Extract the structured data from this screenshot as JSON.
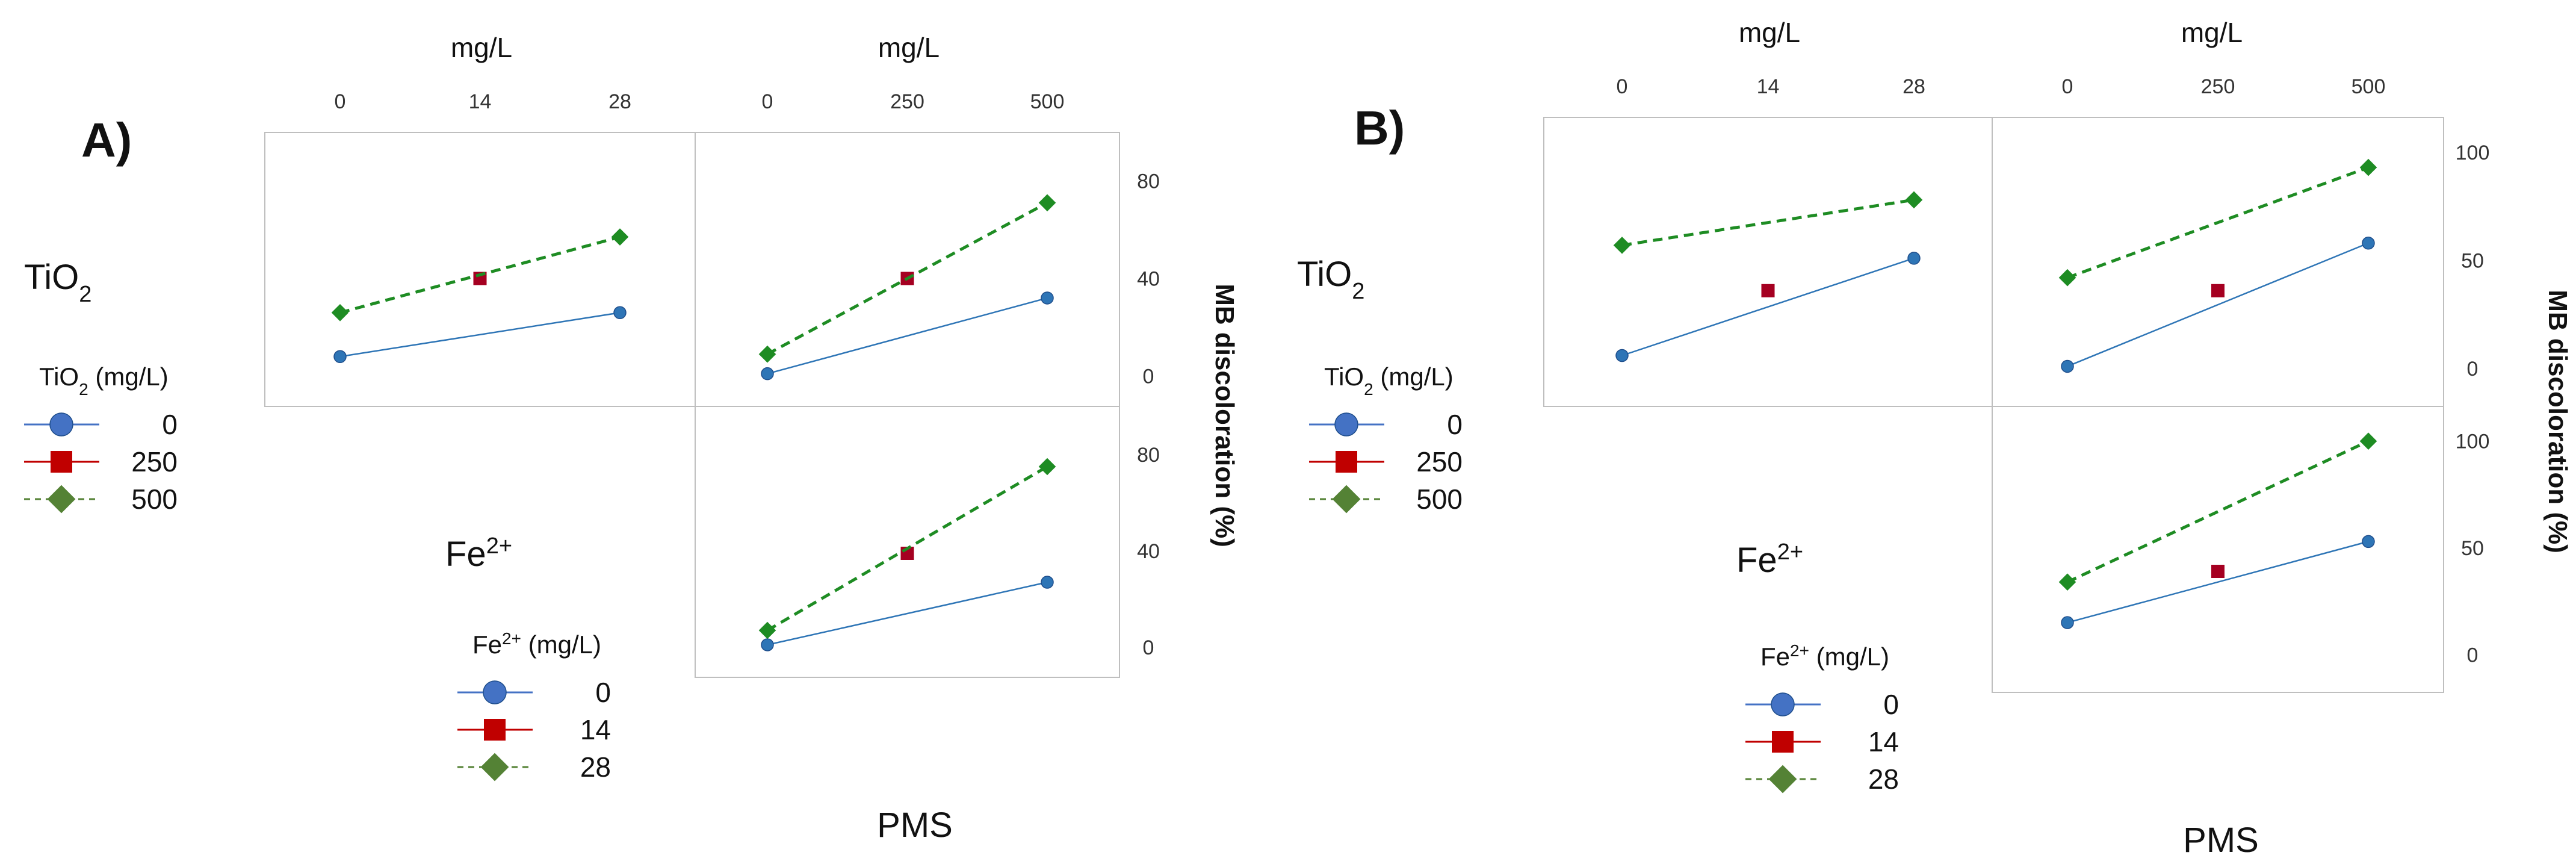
{
  "figure": {
    "panels": [
      {
        "id": "A",
        "letter": "A)",
        "top_unit_left": "mg/L",
        "top_unit_right": "mg/L",
        "row1_factor": "TiO",
        "row1_factor_sub": "2",
        "row2_factor": "Fe",
        "row2_factor_sup": "2+",
        "ylabel": "MB discoloration (%)",
        "xlabel": "PMS",
        "ytick_labels_top": [
          "0",
          "40",
          "80"
        ],
        "ytick_labels_bottom": [
          "0",
          "40",
          "80"
        ],
        "legend_tio2": {
          "title_pre": "TiO",
          "title_sub": "2",
          "title_post": " (mg/L)",
          "items": [
            {
              "label": "0",
              "marker": "circle",
              "color": "#4472C4",
              "line": "solid"
            },
            {
              "label": "250",
              "marker": "square",
              "color": "#C00000",
              "line": "solid"
            },
            {
              "label": "500",
              "marker": "diamond",
              "color": "#548235",
              "line": "dashed"
            }
          ]
        },
        "legend_fe": {
          "title_pre": "Fe",
          "title_sup": "2+",
          "title_post": " (mg/L)",
          "items": [
            {
              "label": "0",
              "marker": "circle",
              "color": "#4472C4",
              "line": "solid"
            },
            {
              "label": "14",
              "marker": "square",
              "color": "#C00000",
              "line": "solid"
            },
            {
              "label": "28",
              "marker": "diamond",
              "color": "#548235",
              "line": "dashed"
            }
          ]
        }
      },
      {
        "id": "B",
        "letter": "B)",
        "top_unit_left": "mg/L",
        "top_unit_right": "mg/L",
        "row1_factor": "TiO",
        "row1_factor_sub": "2",
        "row2_factor": "Fe",
        "row2_factor_sup": "2+",
        "ylabel": "MB discoloration (%)",
        "xlabel": "PMS",
        "ytick_labels_top": [
          "0",
          "50",
          "100"
        ],
        "ytick_labels_bottom": [
          "0",
          "50",
          "100"
        ],
        "legend_tio2": {
          "title_pre": "TiO",
          "title_sub": "2",
          "title_post": " (mg/L)",
          "items": [
            {
              "label": "0",
              "marker": "circle",
              "color": "#4472C4",
              "line": "solid"
            },
            {
              "label": "250",
              "marker": "square",
              "color": "#C00000",
              "line": "solid"
            },
            {
              "label": "500",
              "marker": "diamond",
              "color": "#548235",
              "line": "dashed"
            }
          ]
        },
        "legend_fe": {
          "title_pre": "Fe",
          "title_sup": "2+",
          "title_post": " (mg/L)",
          "items": [
            {
              "label": "0",
              "marker": "circle",
              "color": "#4472C4",
              "line": "solid"
            },
            {
              "label": "14",
              "marker": "square",
              "color": "#C00000",
              "line": "solid"
            },
            {
              "label": "28",
              "marker": "diamond",
              "color": "#548235",
              "line": "dashed"
            }
          ]
        }
      }
    ]
  },
  "chart_data": [
    {
      "type": "line",
      "panel": "A",
      "subplot": "top-left",
      "x": [
        0,
        14,
        28
      ],
      "xticks": [
        "0",
        "14",
        "28"
      ],
      "xlim": [
        0,
        28
      ],
      "ylim": [
        -5,
        85
      ],
      "series": [
        {
          "name": "0",
          "marker": "circle",
          "color": "#2E75B6",
          "line": "solid",
          "x": [
            0,
            28
          ],
          "y": [
            8,
            26
          ]
        },
        {
          "name": "250",
          "marker": "square",
          "color": "#A50021",
          "line": "none",
          "x": [
            14
          ],
          "y": [
            40
          ]
        },
        {
          "name": "500",
          "marker": "diamond",
          "color": "#1E8C23",
          "line": "dashed",
          "x": [
            0,
            28
          ],
          "y": [
            26,
            57
          ]
        }
      ]
    },
    {
      "type": "line",
      "panel": "A",
      "subplot": "top-right",
      "x": [
        0,
        250,
        500
      ],
      "xticks": [
        "0",
        "250",
        "500"
      ],
      "xlim": [
        0,
        500
      ],
      "ylim": [
        -5,
        85
      ],
      "series": [
        {
          "name": "0",
          "marker": "circle",
          "color": "#2E75B6",
          "line": "solid",
          "x": [
            0,
            500
          ],
          "y": [
            1,
            32
          ]
        },
        {
          "name": "250",
          "marker": "square",
          "color": "#A50021",
          "line": "none",
          "x": [
            250
          ],
          "y": [
            40
          ]
        },
        {
          "name": "500",
          "marker": "diamond",
          "color": "#1E8C23",
          "line": "dashed",
          "x": [
            0,
            500
          ],
          "y": [
            9,
            71
          ]
        }
      ]
    },
    {
      "type": "line",
      "panel": "A",
      "subplot": "bottom-right",
      "x": [
        0,
        250,
        500
      ],
      "xticks": [
        "0",
        "250",
        "500"
      ],
      "xlim": [
        0,
        500
      ],
      "ylim": [
        -5,
        85
      ],
      "series": [
        {
          "name": "0",
          "marker": "circle",
          "color": "#2E75B6",
          "line": "solid",
          "x": [
            0,
            500
          ],
          "y": [
            1,
            27
          ]
        },
        {
          "name": "14",
          "marker": "square",
          "color": "#A50021",
          "line": "none",
          "x": [
            250
          ],
          "y": [
            39
          ]
        },
        {
          "name": "28",
          "marker": "diamond",
          "color": "#1E8C23",
          "line": "dashed",
          "x": [
            0,
            500
          ],
          "y": [
            7,
            75
          ]
        }
      ]
    },
    {
      "type": "line",
      "panel": "B",
      "subplot": "top-left",
      "x": [
        0,
        14,
        28
      ],
      "xticks": [
        "0",
        "14",
        "28"
      ],
      "xlim": [
        0,
        28
      ],
      "ylim": [
        -5,
        105
      ],
      "series": [
        {
          "name": "0",
          "marker": "circle",
          "color": "#2E75B6",
          "line": "solid",
          "x": [
            0,
            28
          ],
          "y": [
            6,
            51
          ]
        },
        {
          "name": "250",
          "marker": "square",
          "color": "#A50021",
          "line": "none",
          "x": [
            14
          ],
          "y": [
            36
          ]
        },
        {
          "name": "500",
          "marker": "diamond",
          "color": "#1E8C23",
          "line": "dashed",
          "x": [
            0,
            28
          ],
          "y": [
            57,
            78
          ]
        }
      ]
    },
    {
      "type": "line",
      "panel": "B",
      "subplot": "top-right",
      "x": [
        0,
        250,
        500
      ],
      "xticks": [
        "0",
        "250",
        "500"
      ],
      "xlim": [
        0,
        500
      ],
      "ylim": [
        -5,
        105
      ],
      "series": [
        {
          "name": "0",
          "marker": "circle",
          "color": "#2E75B6",
          "line": "solid",
          "x": [
            0,
            500
          ],
          "y": [
            1,
            58
          ]
        },
        {
          "name": "250",
          "marker": "square",
          "color": "#A50021",
          "line": "none",
          "x": [
            250
          ],
          "y": [
            36
          ]
        },
        {
          "name": "500",
          "marker": "diamond",
          "color": "#1E8C23",
          "line": "dashed",
          "x": [
            0,
            500
          ],
          "y": [
            42,
            93
          ]
        }
      ]
    },
    {
      "type": "line",
      "panel": "B",
      "subplot": "bottom-right",
      "x": [
        0,
        250,
        500
      ],
      "xticks": [
        "0",
        "250",
        "500"
      ],
      "xlim": [
        0,
        500
      ],
      "ylim": [
        -5,
        105
      ],
      "series": [
        {
          "name": "0",
          "marker": "circle",
          "color": "#2E75B6",
          "line": "solid",
          "x": [
            0,
            500
          ],
          "y": [
            15,
            53
          ]
        },
        {
          "name": "14",
          "marker": "square",
          "color": "#A50021",
          "line": "none",
          "x": [
            250
          ],
          "y": [
            39
          ]
        },
        {
          "name": "28",
          "marker": "diamond",
          "color": "#1E8C23",
          "line": "dashed",
          "x": [
            0,
            500
          ],
          "y": [
            34,
            100
          ]
        }
      ]
    }
  ]
}
